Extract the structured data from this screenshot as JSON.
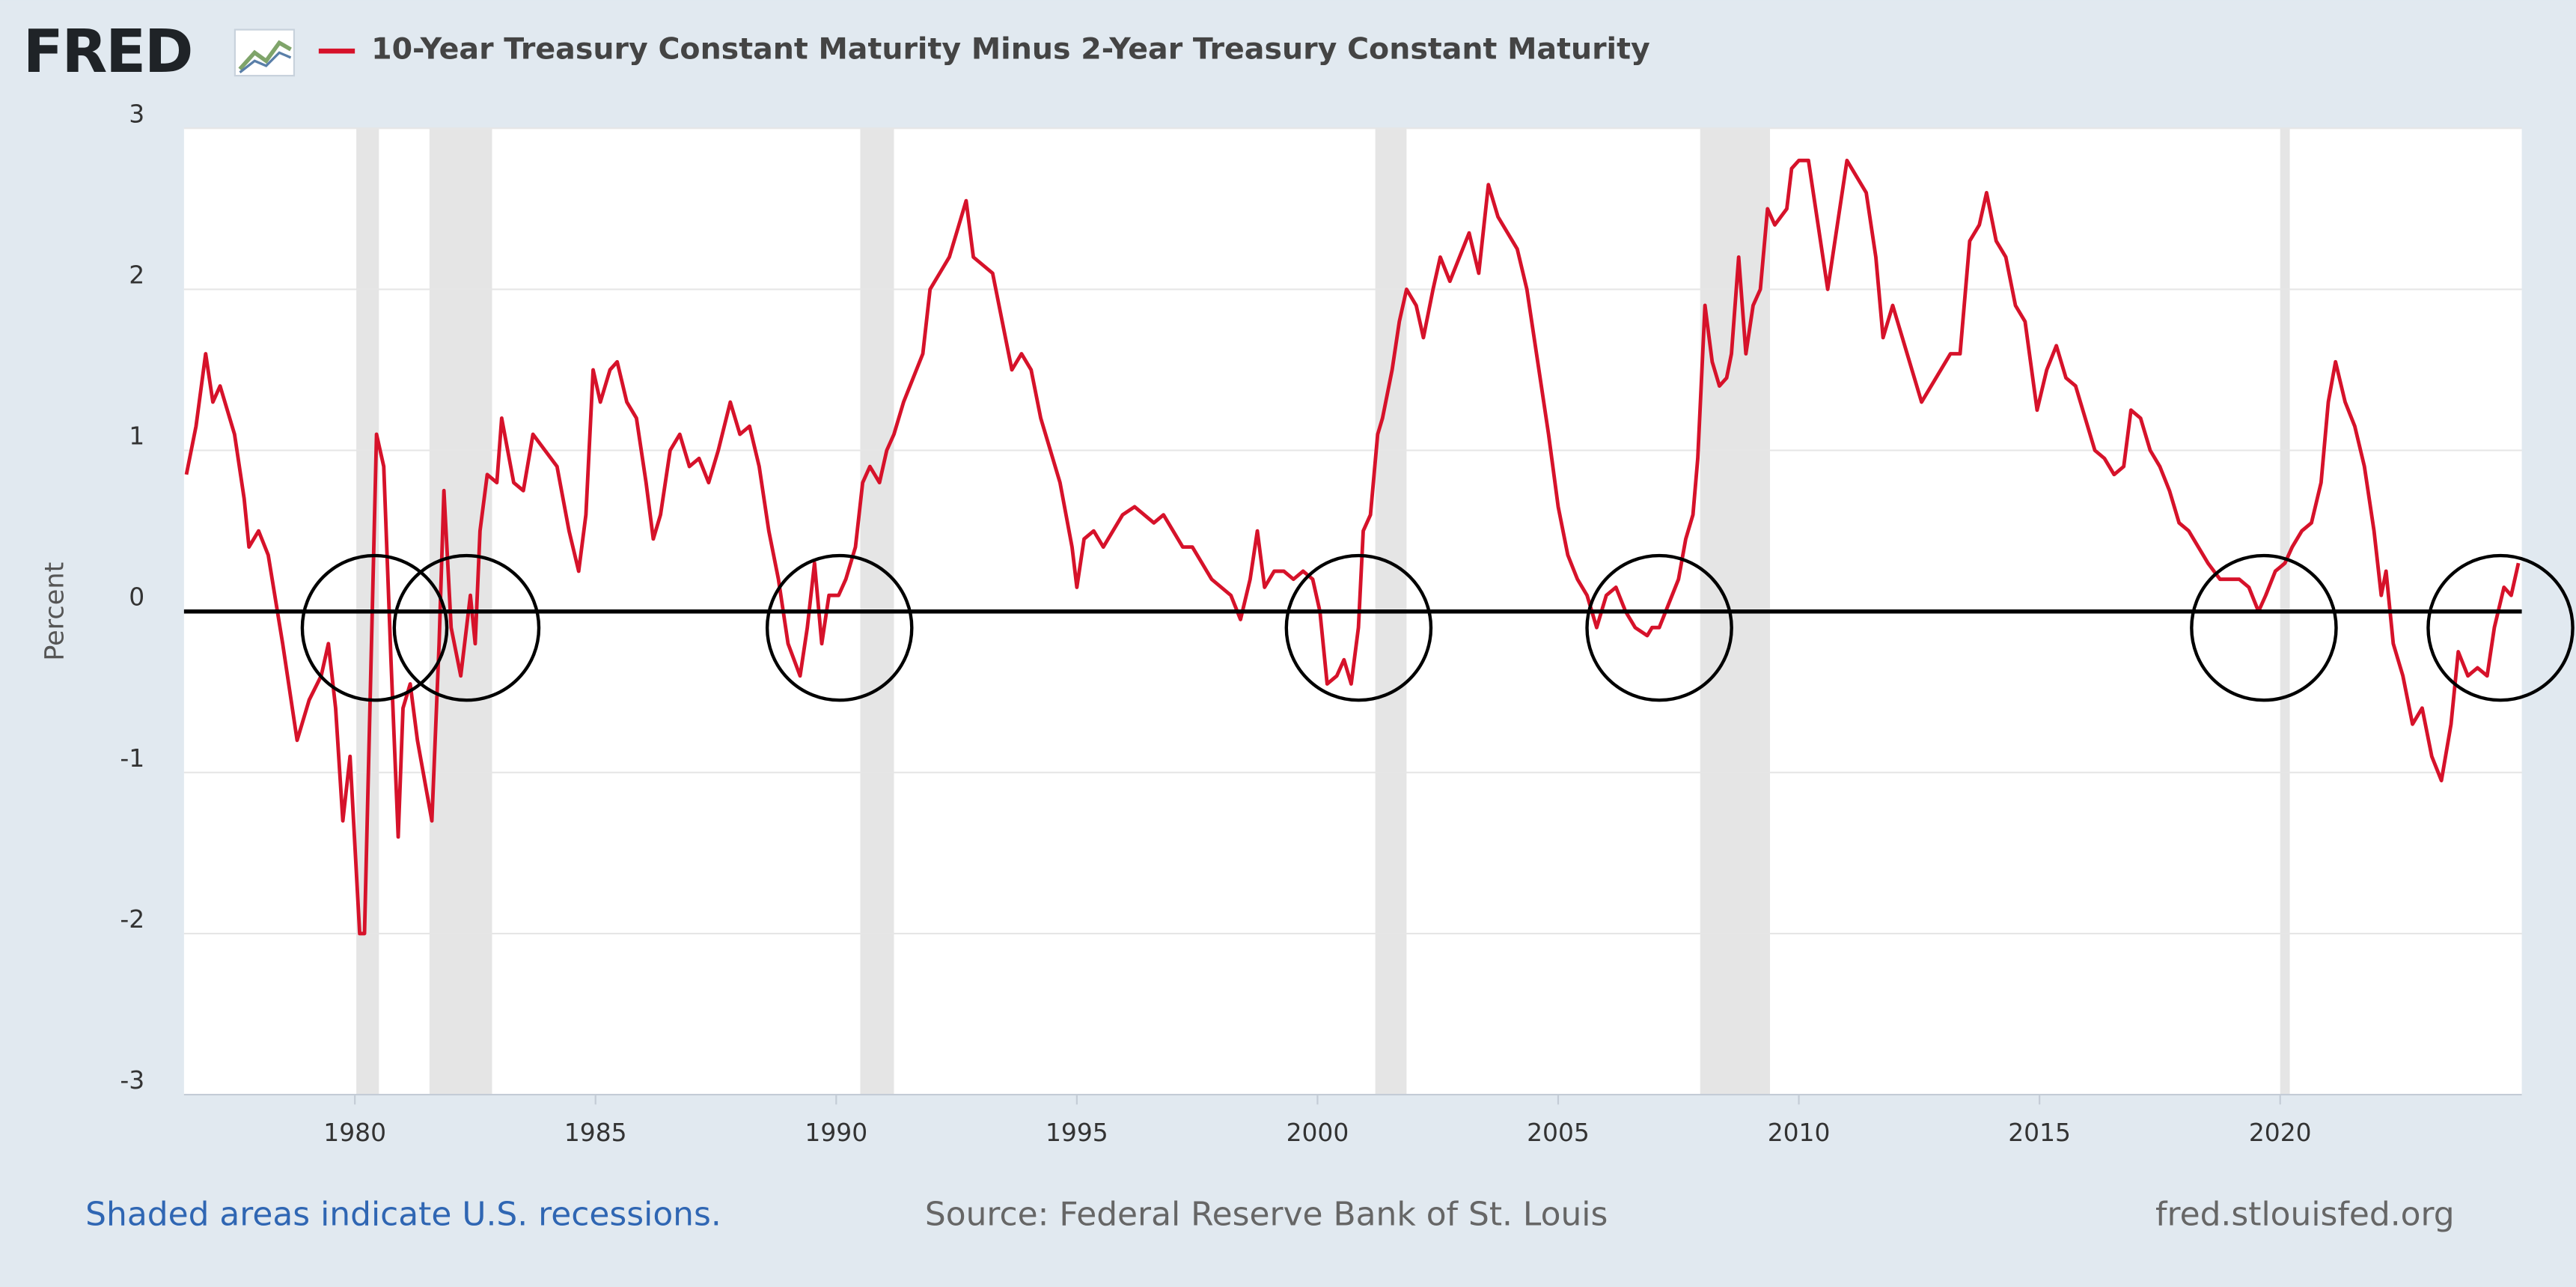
{
  "logo": "FRED",
  "chart_data": {
    "type": "line",
    "title": "10-Year Treasury Constant Maturity Minus 2-Year Treasury Constant Maturity",
    "y_label": "Percent",
    "note": "Shaded areas indicate U.S. recessions.",
    "source": "Source: Federal Reserve Bank of St. Louis",
    "site": "fred.stlouisfed.org",
    "xlim": [
      1976.45,
      2025.02
    ],
    "xticks": [
      1980,
      1985,
      1990,
      1995,
      2000,
      2005,
      2010,
      2015,
      2020
    ],
    "ylim": [
      -3,
      3
    ],
    "yticks": [
      -3,
      -2,
      -1,
      0,
      1,
      2,
      3
    ],
    "grid": true,
    "recession_color": "#e5e5e5",
    "recessions": [
      [
        1980.03,
        1980.5
      ],
      [
        1981.55,
        1982.85
      ],
      [
        1990.5,
        1991.2
      ],
      [
        2001.2,
        2001.85
      ],
      [
        2007.95,
        2009.4
      ],
      [
        2020.0,
        2020.2
      ]
    ],
    "series": [
      {
        "name": "10-Year Treasury Constant Maturity Minus 2-Year Treasury Constant Maturity",
        "color": "#d6122a",
        "x": [
          1976.5,
          1976.7,
          1976.9,
          1977.05,
          1977.2,
          1977.5,
          1977.7,
          1977.8,
          1978.0,
          1978.2,
          1978.5,
          1978.8,
          1979.05,
          1979.3,
          1979.45,
          1979.6,
          1979.75,
          1979.9,
          1980.1,
          1980.2,
          1980.45,
          1980.6,
          1980.75,
          1980.9,
          1981.0,
          1981.15,
          1981.3,
          1981.6,
          1981.75,
          1981.85,
          1982.0,
          1982.2,
          1982.4,
          1982.5,
          1982.6,
          1982.75,
          1982.95,
          1983.05,
          1983.3,
          1983.5,
          1983.7,
          1983.95,
          1984.2,
          1984.45,
          1984.65,
          1984.8,
          1984.95,
          1985.1,
          1985.3,
          1985.45,
          1985.65,
          1985.85,
          1986.05,
          1986.2,
          1986.35,
          1986.55,
          1986.75,
          1986.95,
          1987.15,
          1987.35,
          1987.55,
          1987.8,
          1988.0,
          1988.2,
          1988.4,
          1988.6,
          1988.8,
          1989.0,
          1989.25,
          1989.4,
          1989.55,
          1989.7,
          1989.85,
          1990.05,
          1990.2,
          1990.4,
          1990.55,
          1990.7,
          1990.9,
          1991.05,
          1991.2,
          1991.4,
          1991.6,
          1991.8,
          1991.95,
          1992.15,
          1992.35,
          1992.55,
          1992.7,
          1992.85,
          1993.05,
          1993.25,
          1993.45,
          1993.65,
          1993.85,
          1994.05,
          1994.25,
          1994.45,
          1994.65,
          1994.9,
          1995.0,
          1995.15,
          1995.35,
          1995.55,
          1995.75,
          1995.95,
          1996.2,
          1996.4,
          1996.6,
          1996.8,
          1997.0,
          1997.2,
          1997.4,
          1997.6,
          1997.8,
          1998.0,
          1998.2,
          1998.4,
          1998.6,
          1998.75,
          1998.9,
          1999.1,
          1999.3,
          1999.5,
          1999.7,
          1999.9,
          2000.05,
          2000.2,
          2000.4,
          2000.55,
          2000.7,
          2000.85,
          2000.95,
          2001.1,
          2001.25,
          2001.35,
          2001.55,
          2001.7,
          2001.85,
          2002.05,
          2002.2,
          2002.4,
          2002.55,
          2002.75,
          2002.95,
          2003.15,
          2003.35,
          2003.55,
          2003.75,
          2003.95,
          2004.15,
          2004.35,
          2004.55,
          2004.8,
          2005.0,
          2005.2,
          2005.4,
          2005.6,
          2005.8,
          2006.0,
          2006.2,
          2006.4,
          2006.6,
          2006.85,
          2006.95,
          2007.1,
          2007.3,
          2007.5,
          2007.65,
          2007.8,
          2007.9,
          2008.05,
          2008.2,
          2008.35,
          2008.5,
          2008.6,
          2008.75,
          2008.9,
          2009.05,
          2009.2,
          2009.35,
          2009.5,
          2009.75,
          2009.85,
          2010.0,
          2010.2,
          2010.4,
          2010.6,
          2010.8,
          2011.0,
          2011.2,
          2011.4,
          2011.6,
          2011.75,
          2011.95,
          2012.15,
          2012.35,
          2012.55,
          2012.75,
          2012.95,
          2013.15,
          2013.35,
          2013.55,
          2013.75,
          2013.9,
          2014.1,
          2014.3,
          2014.5,
          2014.7,
          2014.95,
          2015.15,
          2015.35,
          2015.55,
          2015.75,
          2015.95,
          2016.15,
          2016.35,
          2016.55,
          2016.75,
          2016.9,
          2017.1,
          2017.3,
          2017.5,
          2017.7,
          2017.9,
          2018.1,
          2018.3,
          2018.5,
          2018.75,
          2018.95,
          2019.15,
          2019.35,
          2019.55,
          2019.7,
          2019.9,
          2020.1,
          2020.25,
          2020.45,
          2020.65,
          2020.85,
          2021.0,
          2021.15,
          2021.35,
          2021.55,
          2021.75,
          2021.95,
          2022.1,
          2022.2,
          2022.35,
          2022.55,
          2022.75,
          2022.95,
          2023.15,
          2023.35,
          2023.55,
          2023.7,
          2023.9,
          2024.1,
          2024.3,
          2024.45,
          2024.65,
          2024.8,
          2024.95
        ],
        "values": [
          0.85,
          1.15,
          1.6,
          1.3,
          1.4,
          1.1,
          0.7,
          0.4,
          0.5,
          0.35,
          -0.2,
          -0.8,
          -0.55,
          -0.4,
          -0.2,
          -0.6,
          -1.3,
          -0.9,
          -2.0,
          -2.0,
          1.1,
          0.9,
          -0.3,
          -1.4,
          -0.6,
          -0.45,
          -0.8,
          -1.3,
          -0.2,
          0.75,
          -0.1,
          -0.4,
          0.1,
          -0.2,
          0.5,
          0.85,
          0.8,
          1.2,
          0.8,
          0.75,
          1.1,
          1.0,
          0.9,
          0.5,
          0.25,
          0.6,
          1.5,
          1.3,
          1.5,
          1.55,
          1.3,
          1.2,
          0.8,
          0.45,
          0.6,
          1.0,
          1.1,
          0.9,
          0.95,
          0.8,
          1.0,
          1.3,
          1.1,
          1.15,
          0.9,
          0.5,
          0.2,
          -0.2,
          -0.4,
          -0.1,
          0.3,
          -0.2,
          0.1,
          0.1,
          0.2,
          0.4,
          0.8,
          0.9,
          0.8,
          1.0,
          1.1,
          1.3,
          1.45,
          1.6,
          2.0,
          2.1,
          2.2,
          2.4,
          2.55,
          2.2,
          2.15,
          2.1,
          1.8,
          1.5,
          1.6,
          1.5,
          1.2,
          1.0,
          0.8,
          0.4,
          0.15,
          0.45,
          0.5,
          0.4,
          0.5,
          0.6,
          0.65,
          0.6,
          0.55,
          0.6,
          0.5,
          0.4,
          0.4,
          0.3,
          0.2,
          0.15,
          0.1,
          -0.05,
          0.2,
          0.5,
          0.15,
          0.25,
          0.25,
          0.2,
          0.25,
          0.2,
          0.0,
          -0.45,
          -0.4,
          -0.3,
          -0.45,
          -0.1,
          0.5,
          0.6,
          1.1,
          1.2,
          1.5,
          1.8,
          2.0,
          1.9,
          1.7,
          2.0,
          2.2,
          2.05,
          2.2,
          2.35,
          2.1,
          2.65,
          2.45,
          2.35,
          2.25,
          2.0,
          1.6,
          1.1,
          0.65,
          0.35,
          0.2,
          0.1,
          -0.1,
          0.1,
          0.15,
          0.0,
          -0.1,
          -0.15,
          -0.1,
          -0.1,
          0.05,
          0.2,
          0.45,
          0.6,
          0.95,
          1.9,
          1.55,
          1.4,
          1.45,
          1.6,
          2.2,
          1.6,
          1.9,
          2.0,
          2.5,
          2.4,
          2.5,
          2.75,
          2.8,
          2.8,
          2.4,
          2.0,
          2.4,
          2.8,
          2.7,
          2.6,
          2.2,
          1.7,
          1.9,
          1.7,
          1.5,
          1.3,
          1.4,
          1.5,
          1.6,
          1.6,
          2.3,
          2.4,
          2.6,
          2.3,
          2.2,
          1.9,
          1.8,
          1.25,
          1.5,
          1.65,
          1.45,
          1.4,
          1.2,
          1.0,
          0.95,
          0.85,
          0.9,
          1.25,
          1.2,
          1.0,
          0.9,
          0.75,
          0.55,
          0.5,
          0.4,
          0.3,
          0.2,
          0.2,
          0.2,
          0.15,
          0.0,
          0.1,
          0.25,
          0.3,
          0.4,
          0.5,
          0.55,
          0.8,
          1.3,
          1.55,
          1.3,
          1.15,
          0.9,
          0.5,
          0.1,
          0.25,
          -0.2,
          -0.4,
          -0.7,
          -0.6,
          -0.9,
          -1.05,
          -0.7,
          -0.25,
          -0.4,
          -0.35,
          -0.4,
          -0.1,
          0.15,
          0.1,
          0.3
        ]
      }
    ]
  }
}
